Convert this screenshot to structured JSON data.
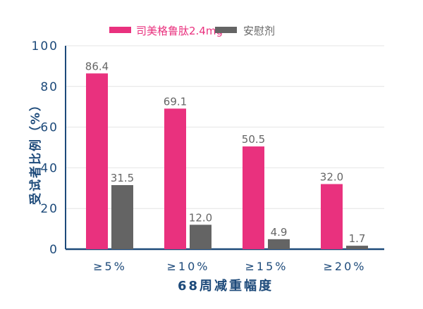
{
  "chart_data": {
    "type": "bar",
    "title": "",
    "xlabel": "68周减重幅度",
    "ylabel": "受试者比例（%）",
    "categories": [
      "≥5%",
      "≥10%",
      "≥15%",
      "≥20%"
    ],
    "series": [
      {
        "name": "司美格鲁肽2.4mg",
        "values": [
          86.4,
          69.1,
          50.5,
          32.0
        ],
        "labels": [
          "86.4",
          "69.1",
          "50.5",
          "32.0"
        ],
        "color": "#e9317e"
      },
      {
        "name": "安慰剂",
        "values": [
          31.5,
          12.0,
          4.9,
          1.7
        ],
        "labels": [
          "31.5",
          "12.0",
          "4.9",
          "1.7"
        ],
        "color": "#646464"
      }
    ],
    "yticks": [
      "0",
      "20",
      "40",
      "60",
      "80",
      "100"
    ],
    "ylim": [
      0,
      100
    ],
    "grid": true,
    "legend": "top-center",
    "axis_color": "#1d4a7a"
  }
}
